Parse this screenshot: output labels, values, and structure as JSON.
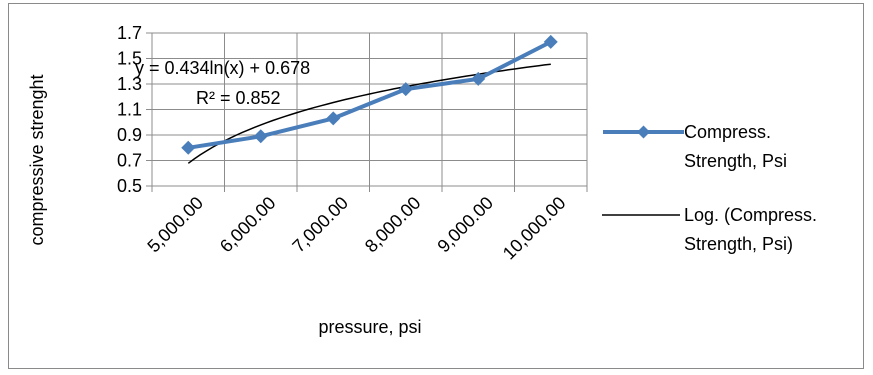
{
  "chart_data": {
    "type": "line",
    "categories": [
      "5,000.00",
      "6,000.00",
      "7,000.00",
      "8,000.00",
      "9,000.00",
      "10,000.00"
    ],
    "x": [
      5000,
      6000,
      7000,
      8000,
      9000,
      10000
    ],
    "series": [
      {
        "name": "Compress. Strength, Psi",
        "values": [
          0.8,
          0.89,
          1.03,
          1.26,
          1.34,
          1.63
        ],
        "color": "#4a7ebb",
        "marker": "diamond"
      }
    ],
    "trendline": {
      "name": "Log. (Compress. Strength, Psi)",
      "type": "logarithmic",
      "a": 0.434,
      "b": 0.678,
      "equation": "y = 0.434ln(x) + 0.678",
      "r_squared": "R² = 0.852",
      "color": "#000000"
    },
    "xlabel": "pressure, psi",
    "ylabel": "compressive strenght",
    "ylim": [
      0.5,
      1.7
    ],
    "yticks": [
      "0.5",
      "0.7",
      "0.9",
      "1.1",
      "1.3",
      "1.5",
      "1.7"
    ],
    "grid": true,
    "legend_position": "right"
  }
}
